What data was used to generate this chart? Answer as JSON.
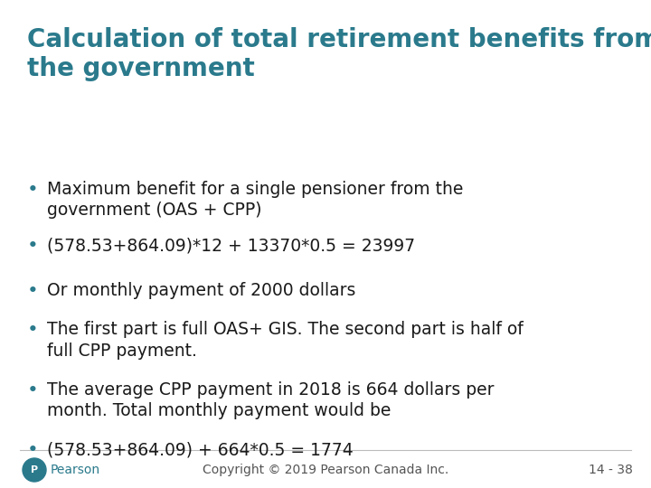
{
  "title_line1": "Calculation of total retirement benefits from",
  "title_line2": "the government",
  "title_color": "#2a7a8c",
  "bg_color": "#ffffff",
  "bullet_points": [
    "Maximum benefit for a single pensioner from the\ngovernment (OAS + CPP)",
    "(578.53+864.09)*12 + 13370*0.5 = 23997",
    "Or monthly payment of 2000 dollars",
    "The first part is full OAS+ GIS. The second part is half of\nfull CPP payment.",
    "The average CPP payment in 2018 is 664 dollars per\nmonth. Total monthly payment would be",
    "(578.53+864.09) + 664*0.5 = 1774"
  ],
  "bullet_color": "#2a7a8c",
  "text_color": "#1a1a1a",
  "footer_text": "Copyright © 2019 Pearson Canada Inc.",
  "footer_right": "14 - 38",
  "footer_color": "#555555",
  "pearson_color": "#2a7a8c",
  "title_fontsize": 20,
  "bullet_fontsize": 13.5,
  "footer_fontsize": 10
}
